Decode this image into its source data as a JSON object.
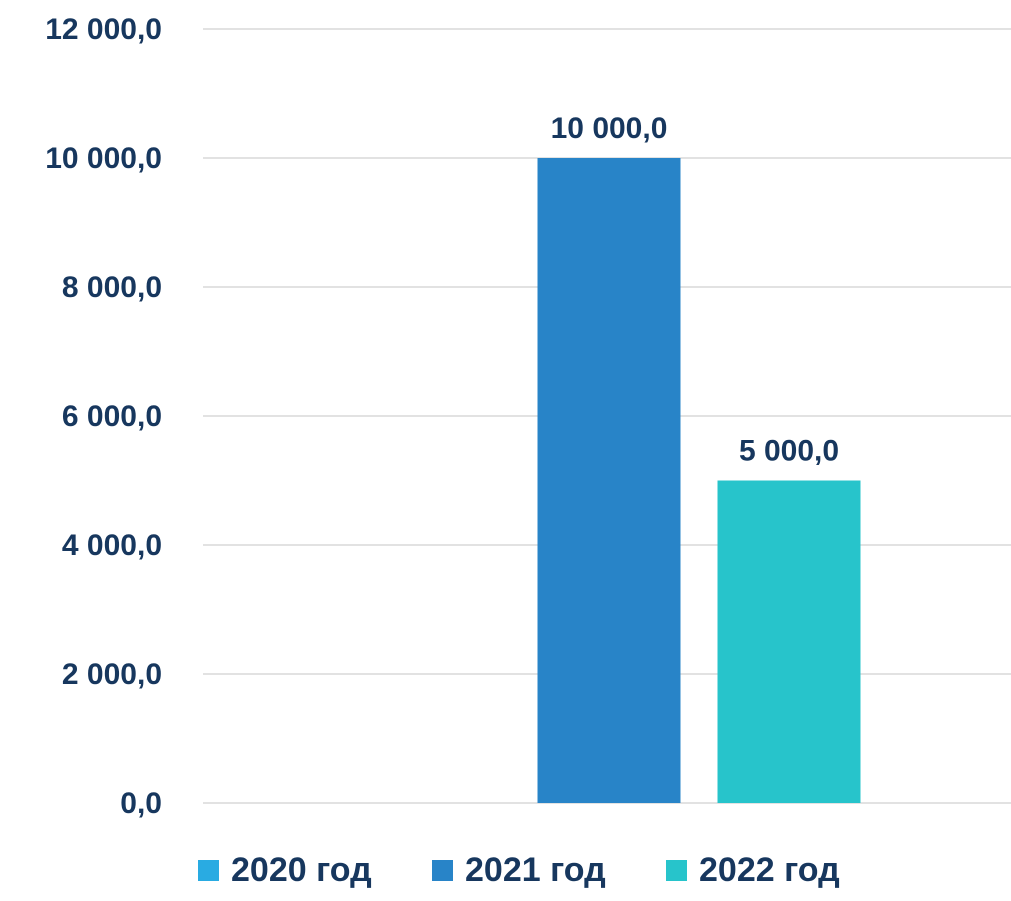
{
  "chart_data": {
    "type": "bar",
    "categories": [
      ""
    ],
    "series": [
      {
        "name": "2020 год",
        "values": [
          null
        ],
        "color": "#29abe2"
      },
      {
        "name": "2021 год",
        "values": [
          10000
        ],
        "color": "#2884c8"
      },
      {
        "name": "2022 год",
        "values": [
          5000
        ],
        "color": "#27c4cb"
      }
    ],
    "data_labels": [
      "",
      "10 000,0",
      "5 000,0"
    ],
    "y_ticks": [
      {
        "value": 0,
        "label": "0,0"
      },
      {
        "value": 2000,
        "label": "2 000,0"
      },
      {
        "value": 4000,
        "label": "4 000,0"
      },
      {
        "value": 6000,
        "label": "6 000,0"
      },
      {
        "value": 8000,
        "label": "8 000,0"
      },
      {
        "value": 10000,
        "label": "10 000,0"
      },
      {
        "value": 12000,
        "label": "12 000,0"
      }
    ],
    "ylim": [
      0,
      12000
    ],
    "grid": true,
    "legend_position": "bottom",
    "title": "",
    "xlabel": "",
    "ylabel": "",
    "text_color": "#17375e",
    "grid_color": "#d9d9d9"
  }
}
